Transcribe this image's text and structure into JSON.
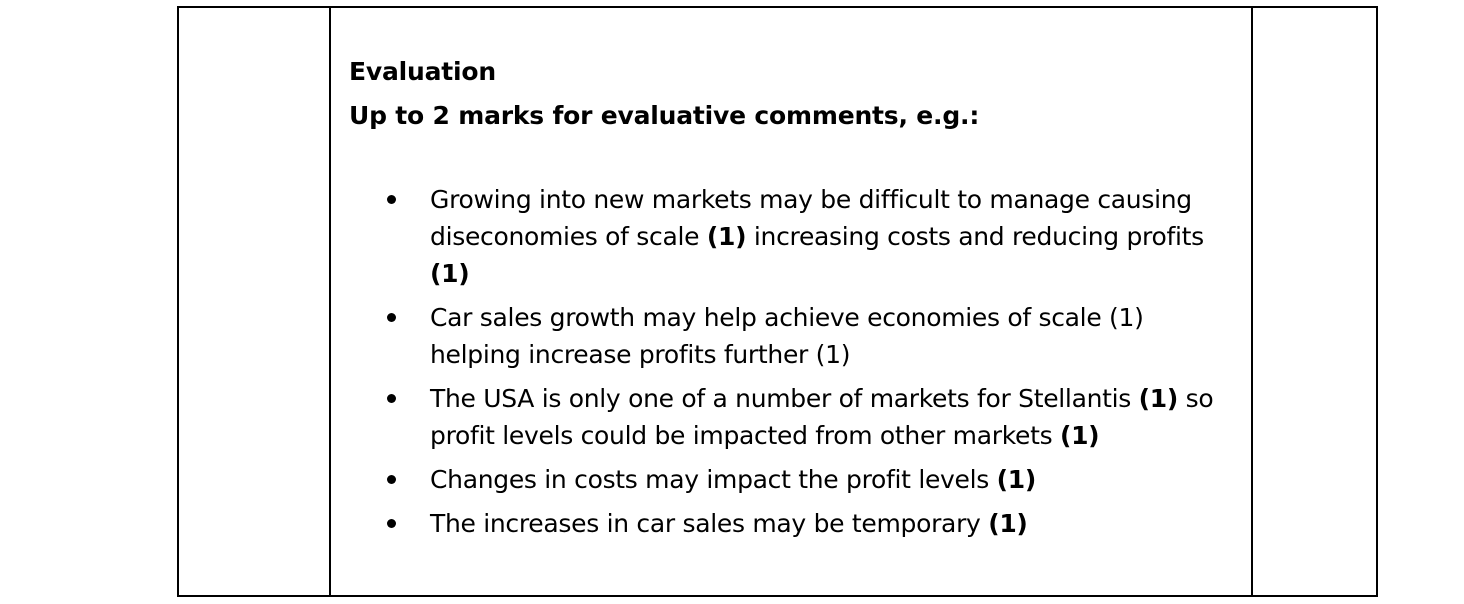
{
  "evaluation": {
    "title": "Evaluation",
    "subtitle": "Up to 2 marks for evaluative comments, e.g.:",
    "bullets": [
      {
        "segments": [
          {
            "text": "Growing into new markets may be difficult to manage causing diseconomies of scale ",
            "bold": false
          },
          {
            "text": "(1)",
            "bold": true
          },
          {
            "text": " increasing costs and reducing profits ",
            "bold": false
          },
          {
            "text": "(1)",
            "bold": true
          }
        ]
      },
      {
        "segments": [
          {
            "text": "Car sales growth may help achieve economies of scale (1) helping increase profits further (1)",
            "bold": false
          }
        ]
      },
      {
        "segments": [
          {
            "text": "The USA is only one of a number of markets for Stellantis ",
            "bold": false
          },
          {
            "text": "(1)",
            "bold": true
          },
          {
            "text": " so profit levels could be impacted from other markets ",
            "bold": false
          },
          {
            "text": "(1)",
            "bold": true
          }
        ]
      },
      {
        "segments": [
          {
            "text": "Changes in costs may impact the profit levels ",
            "bold": false
          },
          {
            "text": "(1)",
            "bold": true
          }
        ]
      },
      {
        "segments": [
          {
            "text": "The increases in car sales may be temporary ",
            "bold": false
          },
          {
            "text": "(1)",
            "bold": true
          }
        ]
      }
    ]
  }
}
